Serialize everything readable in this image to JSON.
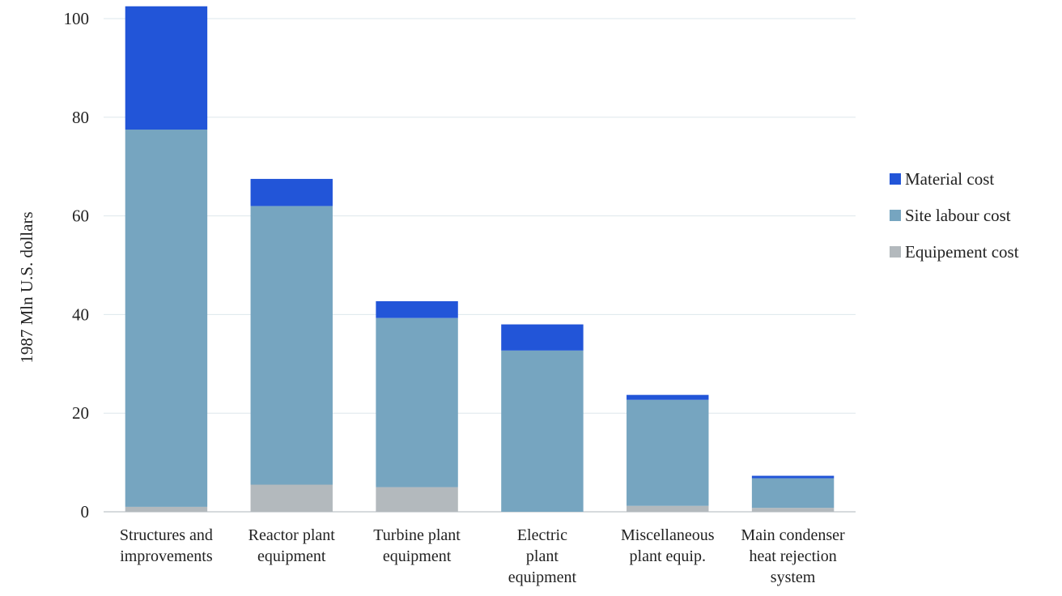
{
  "chart_data": {
    "type": "bar",
    "stacked": true,
    "title": "",
    "xlabel": "",
    "ylabel": "1987 Mln U.S. dollars",
    "ylim": [
      0,
      100
    ],
    "yticks": [
      0,
      20,
      40,
      60,
      80,
      100
    ],
    "grid": true,
    "legend_position": "right",
    "categories": [
      [
        "Structures and",
        "improvements"
      ],
      [
        "Reactor plant",
        "equipment"
      ],
      [
        "Turbine plant",
        "equipment"
      ],
      [
        "Electric",
        "plant",
        "equipment"
      ],
      [
        "Miscellaneous",
        "plant equip."
      ],
      [
        "Main condenser",
        "heat rejection",
        "system"
      ]
    ],
    "series": [
      {
        "name": "Equipement cost",
        "color": "#b3b9bd",
        "values": [
          1,
          5.5,
          5,
          0,
          1.2,
          0.8
        ]
      },
      {
        "name": "Site labour cost",
        "color": "#76a5c0",
        "values": [
          76.5,
          56.5,
          34.3,
          32.7,
          21.5,
          6
        ]
      },
      {
        "name": "Material cost",
        "color": "#2255d8",
        "values": [
          25,
          5.5,
          3.4,
          5.3,
          1,
          0.5
        ]
      }
    ],
    "legend_order": [
      "Material cost",
      "Site labour cost",
      "Equipement cost"
    ]
  }
}
